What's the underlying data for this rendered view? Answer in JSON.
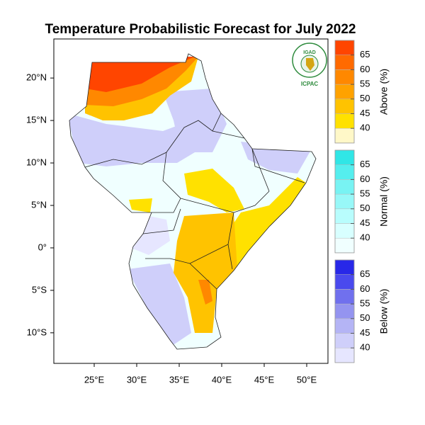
{
  "title": "Temperature Probabilistic Forecast for July 2022",
  "logo": {
    "top": "IGAD",
    "bottom": "ICPAC"
  },
  "map": {
    "xlim": [
      20.25,
      52.5
    ],
    "ylim": [
      -13.6,
      24.6
    ],
    "xticks": [
      {
        "value": 25,
        "label": "25°E"
      },
      {
        "value": 30,
        "label": "30°E"
      },
      {
        "value": 35,
        "label": "35°E"
      },
      {
        "value": 40,
        "label": "40°E"
      },
      {
        "value": 45,
        "label": "45°E"
      },
      {
        "value": 50,
        "label": "50°E"
      }
    ],
    "yticks": [
      {
        "value": 20,
        "label": "20°N"
      },
      {
        "value": 15,
        "label": "15°N"
      },
      {
        "value": 10,
        "label": "10°N"
      },
      {
        "value": 5,
        "label": "5°N"
      },
      {
        "value": 0,
        "label": "0°"
      },
      {
        "value": -5,
        "label": "5°S"
      },
      {
        "value": -10,
        "label": "10°S"
      }
    ]
  },
  "legends": [
    {
      "title": "Above (%)",
      "ticks": [
        40,
        45,
        50,
        55,
        60,
        65
      ],
      "colors": [
        "#fff8c8",
        "#ffe100",
        "#ffc300",
        "#ffa200",
        "#ff8800",
        "#ff6a00",
        "#ff4500"
      ]
    },
    {
      "title": "Normal (%)",
      "ticks": [
        40,
        45,
        50,
        55,
        60,
        65
      ],
      "colors": [
        "#f0ffff",
        "#d8ffff",
        "#b8fdfd",
        "#98f8f8",
        "#78f3f3",
        "#55eeee",
        "#30e6e6"
      ]
    },
    {
      "title": "Below (%)",
      "ticks": [
        40,
        45,
        50,
        55,
        60,
        65
      ],
      "colors": [
        "#e6e6ff",
        "#cfcffa",
        "#b4b4f5",
        "#9494f0",
        "#7070ee",
        "#4a4aee",
        "#2828e8"
      ]
    }
  ]
}
